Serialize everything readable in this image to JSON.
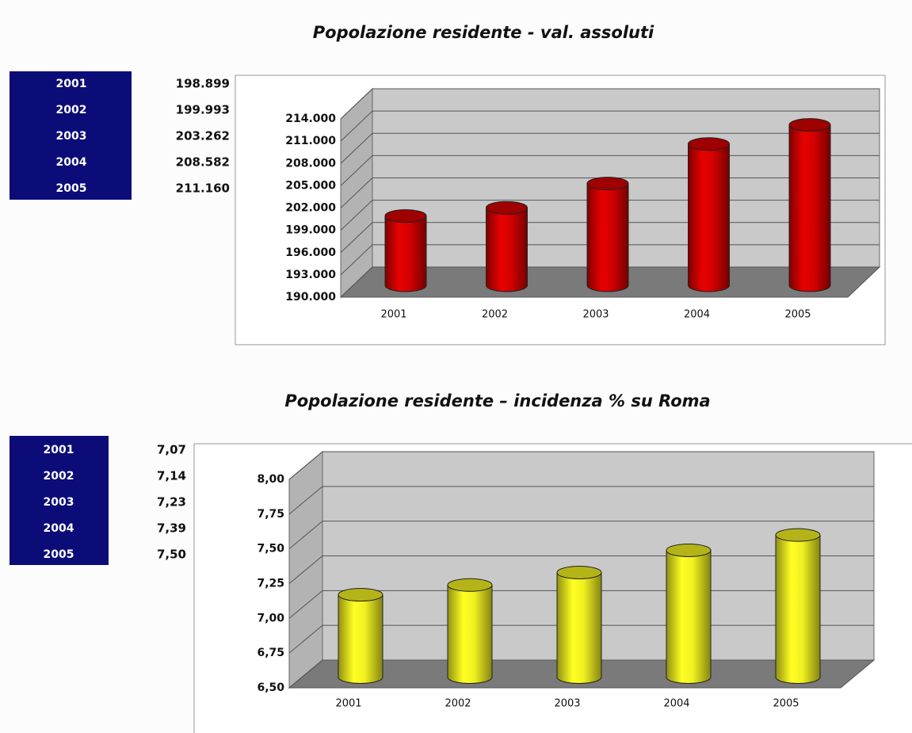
{
  "chart_data": [
    {
      "type": "bar",
      "title": "Popolazione residente - val. assoluti",
      "categories": [
        "2001",
        "2002",
        "2003",
        "2004",
        "2005"
      ],
      "values": [
        198899,
        199993,
        203262,
        208582,
        211160
      ],
      "value_labels": [
        "198.899",
        "199.993",
        "203.262",
        "208.582",
        "211.160"
      ],
      "color": "#d40000",
      "ylim": [
        190000,
        214000
      ],
      "yticks": [
        {
          "value": 190000,
          "label": "190.000"
        },
        {
          "value": 193000,
          "label": "193.000"
        },
        {
          "value": 196000,
          "label": "196.000"
        },
        {
          "value": 199000,
          "label": "199.000"
        },
        {
          "value": 202000,
          "label": "202.000"
        },
        {
          "value": 205000,
          "label": "205.000"
        },
        {
          "value": 208000,
          "label": "208.000"
        },
        {
          "value": 211000,
          "label": "211.000"
        },
        {
          "value": 214000,
          "label": "214.000"
        }
      ],
      "grid": true
    },
    {
      "type": "bar",
      "title": "Popolazione residente – incidenza % su Roma",
      "categories": [
        "2001",
        "2002",
        "2003",
        "2004",
        "2005"
      ],
      "values": [
        7.07,
        7.14,
        7.23,
        7.39,
        7.5
      ],
      "value_labels": [
        "7,07",
        "7,14",
        "7,23",
        "7,39",
        "7,50"
      ],
      "color": "#f0f020",
      "ylim": [
        6.5,
        8
      ],
      "yticks": [
        {
          "value": 6.5,
          "label": "6,50"
        },
        {
          "value": 6.75,
          "label": "6,75"
        },
        {
          "value": 7,
          "label": "7,00"
        },
        {
          "value": 7.25,
          "label": "7,25"
        },
        {
          "value": 7.5,
          "label": "7,50"
        },
        {
          "value": 7.75,
          "label": "7,75"
        },
        {
          "value": 8,
          "label": "8,00"
        }
      ],
      "grid": true
    }
  ]
}
